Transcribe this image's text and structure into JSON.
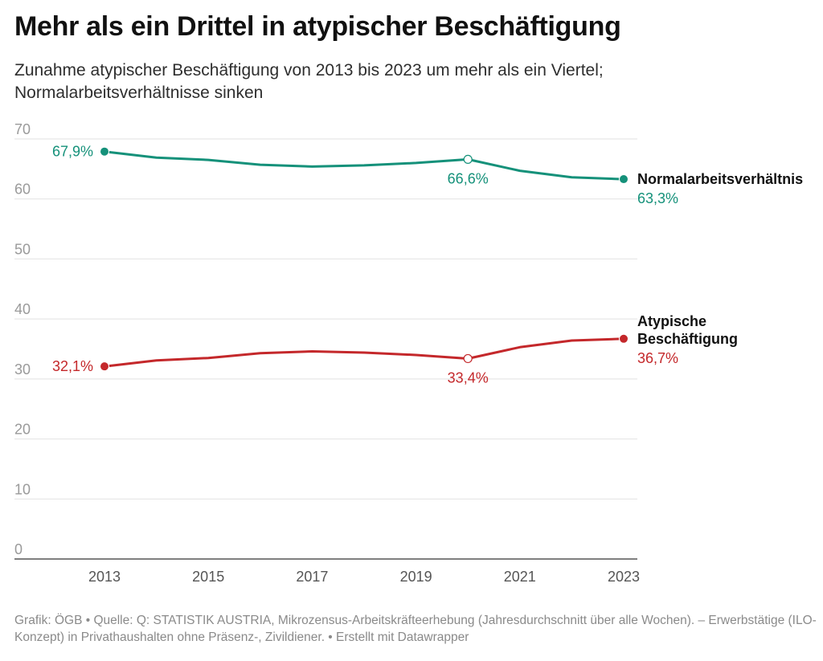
{
  "title": "Mehr als ein Drittel in atypischer Beschäftigung",
  "subtitle": "Zunahme atypischer Beschäftigung von 2013 bis 2023 um mehr als ein Viertel; Normalarbeitsverhältnisse sinken",
  "notes": "Grafik: ÖGB • Quelle: Q: STATISTIK AUSTRIA, Mikrozensus-Arbeitskräfteerhebung (Jahresdurchschnitt über alle Wochen). – Erwerbstätige (ILO-Konzept) in Privathaushalten ohne Präsenz-, Zivildiener.  • Erstellt mit Datawrapper",
  "chart_data": {
    "type": "line",
    "title": "Mehr als ein Drittel in atypischer Beschäftigung",
    "xlabel": "",
    "ylabel": "",
    "x": [
      2013,
      2014,
      2015,
      2016,
      2017,
      2018,
      2019,
      2020,
      2021,
      2022,
      2023
    ],
    "xticks": [
      "2013",
      "2015",
      "2017",
      "2019",
      "2021",
      "2023"
    ],
    "yticks": [
      "0",
      "10",
      "20",
      "30",
      "40",
      "50",
      "60",
      "70"
    ],
    "ylim": [
      0,
      70
    ],
    "grid": true,
    "series": [
      {
        "name": "Normalarbeitsverhältnis",
        "color": "#15917a",
        "values": [
          67.9,
          66.9,
          66.5,
          65.7,
          65.4,
          65.6,
          66.0,
          66.6,
          64.7,
          63.6,
          63.3
        ],
        "labels": [
          {
            "x": 2013,
            "text": "67,9%",
            "marker": "filled",
            "position": "left"
          },
          {
            "x": 2020,
            "text": "66,6%",
            "marker": "hollow",
            "position": "below"
          },
          {
            "x": 2023,
            "text": "63,3%",
            "marker": "filled",
            "position": "right-below"
          }
        ]
      },
      {
        "name": "Atypische Beschäftigung",
        "color": "#c4282b",
        "values": [
          32.1,
          33.1,
          33.5,
          34.3,
          34.6,
          34.4,
          34.0,
          33.4,
          35.3,
          36.4,
          36.7
        ],
        "labels": [
          {
            "x": 2013,
            "text": "32,1%",
            "marker": "filled",
            "position": "left"
          },
          {
            "x": 2020,
            "text": "33,4%",
            "marker": "hollow",
            "position": "below"
          },
          {
            "x": 2023,
            "text": "36,7%",
            "marker": "filled",
            "position": "right-below"
          }
        ]
      }
    ]
  }
}
